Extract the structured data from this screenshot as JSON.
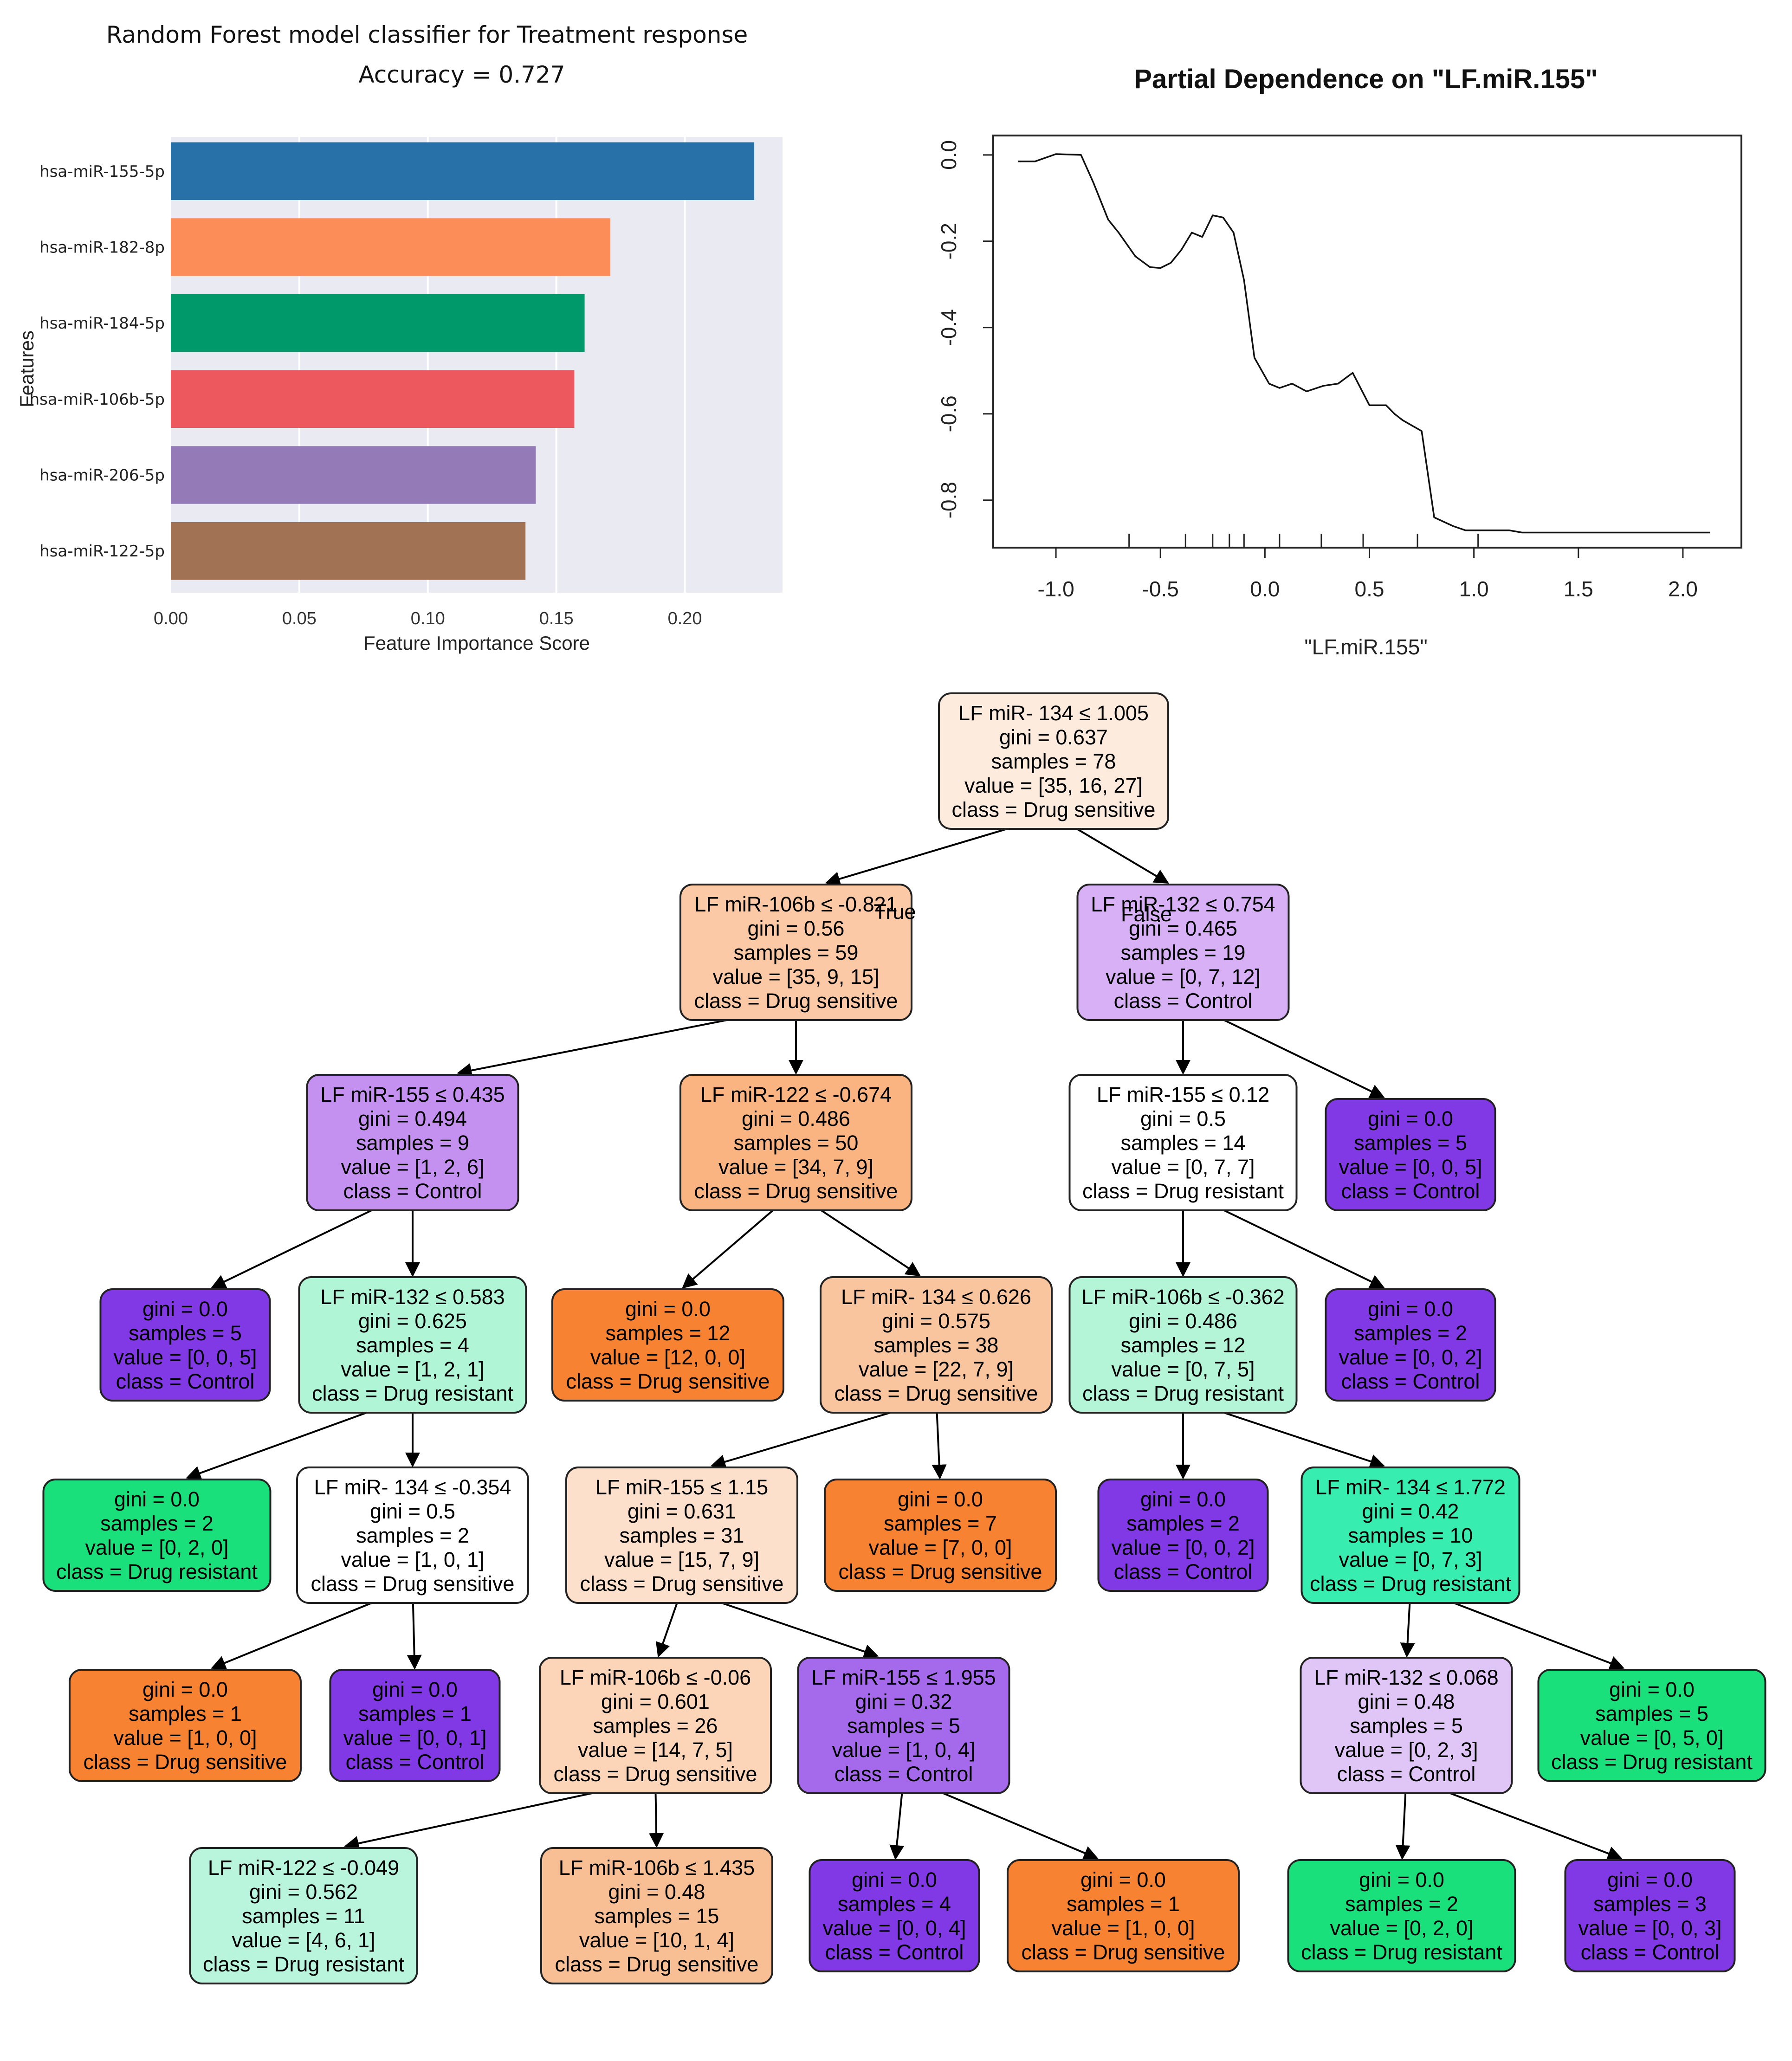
{
  "chart_data": [
    {
      "type": "bar",
      "orientation": "horizontal",
      "title": "Random Forest model classifier for Treatment response",
      "subtitle": "Accuracy = 0.727",
      "xlabel": "Feature Importance Score",
      "ylabel": "Features",
      "xlim": [
        0,
        0.238
      ],
      "xticks": [
        "0.00",
        "0.05",
        "0.10",
        "0.15",
        "0.20"
      ],
      "grid": true,
      "categories": [
        "hsa-miR-155-5p",
        "hsa-miR-182-8p",
        "hsa-miR-184-5p",
        "hsa-miR-106b-5p",
        "hsa-miR-206-5p",
        "hsa-miR-122-5p"
      ],
      "values": [
        0.227,
        0.171,
        0.161,
        0.157,
        0.142,
        0.138
      ],
      "colors": [
        "#2870a8",
        "#fc8d59",
        "#009a6a",
        "#ec585e",
        "#957ab8",
        "#a27254"
      ]
    },
    {
      "type": "line",
      "title": "Partial Dependence on \"LF.miR.155\"",
      "xlabel": "\"LF.miR.155\"",
      "ylabel": "",
      "xlim": [
        -1.3,
        2.28
      ],
      "ylim": [
        -0.91,
        0.045
      ],
      "xticks": [
        "-1.0",
        "-0.5",
        "0.0",
        "0.5",
        "1.0",
        "1.5",
        "2.0"
      ],
      "yticks": [
        "0.0",
        "-0.2",
        "-0.4",
        "-0.6",
        "-0.8"
      ],
      "x": [
        -1.18,
        -1.1,
        -1.0,
        -0.88,
        -0.82,
        -0.75,
        -0.7,
        -0.62,
        -0.55,
        -0.5,
        -0.45,
        -0.4,
        -0.35,
        -0.3,
        -0.25,
        -0.2,
        -0.15,
        -0.1,
        -0.05,
        0.02,
        0.07,
        0.13,
        0.2,
        0.28,
        0.35,
        0.42,
        0.5,
        0.58,
        0.62,
        0.66,
        0.75,
        0.81,
        0.9,
        0.96,
        1.03,
        1.1,
        1.17,
        1.23,
        1.3,
        1.4,
        1.5,
        2.13
      ],
      "y": [
        -0.015,
        -0.015,
        0.002,
        0.0,
        -0.065,
        -0.15,
        -0.18,
        -0.235,
        -0.26,
        -0.262,
        -0.25,
        -0.22,
        -0.18,
        -0.19,
        -0.14,
        -0.145,
        -0.18,
        -0.29,
        -0.47,
        -0.53,
        -0.54,
        -0.53,
        -0.548,
        -0.535,
        -0.53,
        -0.505,
        -0.58,
        -0.58,
        -0.6,
        -0.615,
        -0.64,
        -0.84,
        -0.86,
        -0.87,
        -0.87,
        -0.87,
        -0.87,
        -0.875,
        -0.875,
        -0.875,
        -0.875,
        -0.875
      ],
      "rug": [
        -0.65,
        -0.38,
        -0.25,
        -0.17,
        -0.1,
        0.07,
        0.27,
        0.47,
        0.73,
        1.02
      ]
    },
    {
      "type": "tree",
      "root": "n0",
      "nodes": {
        "n0": {
          "lines": [
            "LF miR- 134 ≤ 1.005",
            "gini = 0.637",
            "samples = 78",
            "value = [35, 16, 27]",
            "class = Drug sensitive"
          ],
          "fill": "#fdebde",
          "children": [
            "n1",
            "n2"
          ]
        },
        "n1": {
          "lines": [
            "LF miR-106b ≤ -0.821",
            "gini = 0.56",
            "samples = 59",
            "value = [35, 9, 15]",
            "class = Drug sensitive"
          ],
          "fill": "#fbc9a5",
          "children": [
            "n3",
            "n4"
          ]
        },
        "n2": {
          "lines": [
            "LF miR-132 ≤ 0.754",
            "gini = 0.465",
            "samples = 19",
            "value = [0, 7, 12]",
            "class = Control"
          ],
          "fill": "#d7b0f5",
          "children": [
            "n5",
            "n6"
          ]
        },
        "n3": {
          "lines": [
            "LF miR-155 ≤ 0.435",
            "gini = 0.494",
            "samples = 9",
            "value = [1, 2, 6]",
            "class = Control"
          ],
          "fill": "#c591f0",
          "children": [
            "n7",
            "n8"
          ]
        },
        "n4": {
          "lines": [
            "LF miR-122 ≤ -0.674",
            "gini = 0.486",
            "samples = 50",
            "value = [34, 7, 9]",
            "class = Drug sensitive"
          ],
          "fill": "#f9b482",
          "children": [
            "n9",
            "n10"
          ]
        },
        "n5": {
          "lines": [
            "LF miR-155 ≤ 0.12",
            "gini = 0.5",
            "samples = 14",
            "value = [0, 7, 7]",
            "class = Drug resistant"
          ],
          "fill": "#ffffff",
          "children": [
            "n11",
            "n12"
          ]
        },
        "n6": {
          "lines": [
            "gini = 0.0",
            "samples = 5",
            "value = [0, 0, 5]",
            "class = Control"
          ],
          "fill": "#8139e5",
          "children": []
        },
        "n7": {
          "lines": [
            "gini = 0.0",
            "samples = 5",
            "value = [0, 0, 5]",
            "class = Control"
          ],
          "fill": "#8139e5",
          "children": []
        },
        "n8": {
          "lines": [
            "LF miR-132 ≤ 0.583",
            "gini = 0.625",
            "samples = 4",
            "value = [1, 2, 1]",
            "class = Drug resistant"
          ],
          "fill": "#b0f5d5",
          "children": [
            "n13",
            "n14"
          ]
        },
        "n9": {
          "lines": [
            "gini = 0.0",
            "samples = 12",
            "value = [12, 0, 0]",
            "class = Drug sensitive"
          ],
          "fill": "#f68232",
          "children": []
        },
        "n10": {
          "lines": [
            "LF miR- 134 ≤ 0.626",
            "gini = 0.575",
            "samples = 38",
            "value = [22, 7, 9]",
            "class = Drug sensitive"
          ],
          "fill": "#f9c59f",
          "children": [
            "n15",
            "n16"
          ]
        },
        "n11": {
          "lines": [
            "LF miR-106b ≤ -0.362",
            "gini = 0.486",
            "samples = 12",
            "value = [0, 7, 5]",
            "class = Drug resistant"
          ],
          "fill": "#b4f5d8",
          "children": [
            "n17",
            "n18"
          ]
        },
        "n12": {
          "lines": [
            "gini = 0.0",
            "samples = 2",
            "value = [0, 0, 2]",
            "class = Control"
          ],
          "fill": "#8139e5",
          "children": []
        },
        "n13": {
          "lines": [
            "gini = 0.0",
            "samples = 2",
            "value = [0, 2, 0]",
            "class = Drug resistant"
          ],
          "fill": "#19e07a",
          "children": []
        },
        "n14": {
          "lines": [
            "LF miR- 134 ≤ -0.354",
            "gini = 0.5",
            "samples = 2",
            "value = [1, 0, 1]",
            "class = Drug sensitive"
          ],
          "fill": "#ffffff",
          "children": [
            "n19",
            "n20"
          ]
        },
        "n15": {
          "lines": [
            "LF miR-155 ≤ 1.15",
            "gini = 0.631",
            "samples = 31",
            "value = [15, 7, 9]",
            "class = Drug sensitive"
          ],
          "fill": "#fde0cb",
          "children": [
            "n21",
            "n22"
          ]
        },
        "n16": {
          "lines": [
            "gini = 0.0",
            "samples = 7",
            "value = [7, 0, 0]",
            "class = Drug sensitive"
          ],
          "fill": "#f68232",
          "children": []
        },
        "n17": {
          "lines": [
            "gini = 0.0",
            "samples = 2",
            "value = [0, 0, 2]",
            "class = Control"
          ],
          "fill": "#8139e5",
          "children": []
        },
        "n18": {
          "lines": [
            "LF miR- 134 ≤ 1.772",
            "gini = 0.42",
            "samples = 10",
            "value = [0, 7, 3]",
            "class = Drug resistant"
          ],
          "fill": "#37eeb0",
          "children": [
            "n23",
            "n24"
          ]
        },
        "n19": {
          "lines": [
            "gini = 0.0",
            "samples = 1",
            "value = [1, 0, 0]",
            "class = Drug sensitive"
          ],
          "fill": "#f68232",
          "children": []
        },
        "n20": {
          "lines": [
            "gini = 0.0",
            "samples = 1",
            "value = [0, 0, 1]",
            "class = Control"
          ],
          "fill": "#8139e5",
          "children": []
        },
        "n21": {
          "lines": [
            "LF miR-106b ≤ -0.06",
            "gini = 0.601",
            "samples = 26",
            "value = [14, 7, 5]",
            "class = Drug sensitive"
          ],
          "fill": "#fcd5b9",
          "children": [
            "n25",
            "n26"
          ]
        },
        "n22": {
          "lines": [
            "LF miR-155 ≤ 1.955",
            "gini = 0.32",
            "samples = 5",
            "value = [1, 0, 4]",
            "class = Control"
          ],
          "fill": "#a56aec",
          "children": [
            "n27",
            "n28"
          ]
        },
        "n23": {
          "lines": [
            "LF miR-132 ≤ 0.068",
            "gini = 0.48",
            "samples = 5",
            "value = [0, 2, 3]",
            "class = Control"
          ],
          "fill": "#e0c6f7",
          "children": [
            "n29",
            "n30"
          ]
        },
        "n24": {
          "lines": [
            "gini = 0.0",
            "samples = 5",
            "value = [0, 5, 0]",
            "class = Drug resistant"
          ],
          "fill": "#19e07a",
          "children": []
        },
        "n25": {
          "lines": [
            "LF miR-122 ≤ -0.049",
            "gini = 0.562",
            "samples = 11",
            "value = [4, 6, 1]",
            "class = Drug resistant"
          ],
          "fill": "#b8f5dc",
          "children": []
        },
        "n26": {
          "lines": [
            "LF miR-106b ≤ 1.435",
            "gini = 0.48",
            "samples = 15",
            "value = [10, 1, 4]",
            "class = Drug sensitive"
          ],
          "fill": "#f9bf94",
          "children": []
        },
        "n27": {
          "lines": [
            "gini = 0.0",
            "samples = 4",
            "value = [0, 0, 4]",
            "class = Control"
          ],
          "fill": "#8139e5",
          "children": []
        },
        "n28": {
          "lines": [
            "gini = 0.0",
            "samples = 1",
            "value = [1, 0, 0]",
            "class = Drug sensitive"
          ],
          "fill": "#f68232",
          "children": []
        },
        "n29": {
          "lines": [
            "gini = 0.0",
            "samples = 2",
            "value = [0, 2, 0]",
            "class = Drug resistant"
          ],
          "fill": "#19e07a",
          "children": []
        },
        "n30": {
          "lines": [
            "gini = 0.0",
            "samples = 3",
            "value = [0, 0, 3]",
            "class = Control"
          ],
          "fill": "#8139e5",
          "children": []
        }
      },
      "edge_labels": {
        "true": "True",
        "false": "False"
      }
    }
  ]
}
